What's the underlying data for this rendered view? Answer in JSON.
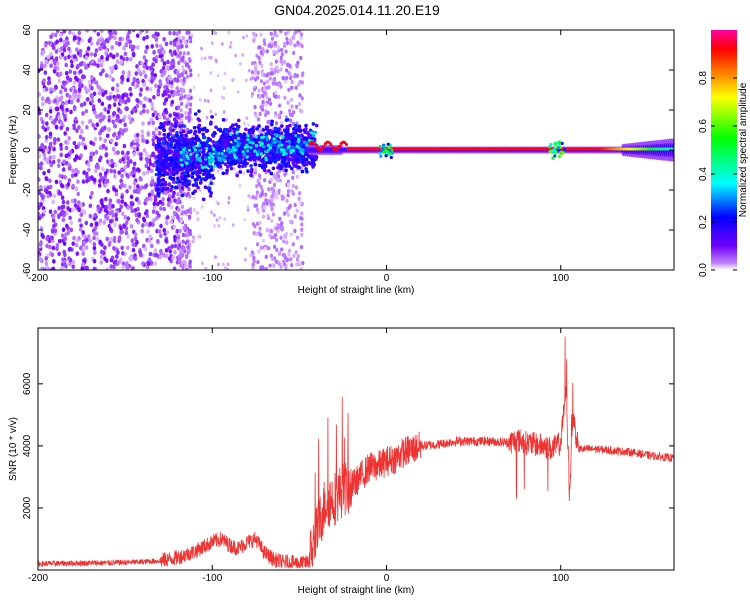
{
  "title": "GN04.2025.014.11.20.E19",
  "chart_data": [
    {
      "type": "heatmap",
      "xlabel": "Height of straight line (km)",
      "ylabel": "Frequency (Hz)",
      "xlim": [
        -200,
        165
      ],
      "ylim": [
        -60,
        60
      ],
      "xticks": [
        -200,
        -100,
        0,
        100
      ],
      "yticks": [
        -60,
        -40,
        -20,
        0,
        20,
        40,
        60
      ],
      "colorbar": {
        "label": "Normalized spectral amplitude",
        "range": [
          0,
          1
        ],
        "ticks": [
          0.0,
          0.2,
          0.4,
          0.6,
          0.8
        ],
        "colors": [
          "#ffffff",
          "#c080ff",
          "#6000ff",
          "#0000ff",
          "#00ffff",
          "#00ff00",
          "#ffff00",
          "#ff8000",
          "#ff0000",
          "#ff00a0"
        ]
      },
      "features": [
        {
          "name": "noise-cloud",
          "x_range": [
            -200,
            -118
          ],
          "freq_range": [
            -60,
            60
          ],
          "amplitude": 0.05
        },
        {
          "name": "sparse-band",
          "x_range": [
            -77,
            -48
          ],
          "freq_range": [
            -60,
            60
          ],
          "amplitude": 0.03
        },
        {
          "name": "signal-band",
          "x_range": [
            -130,
            -40
          ],
          "freq_range": [
            -12,
            14
          ],
          "amplitude": 0.3
        },
        {
          "name": "carrier-line",
          "x_range": [
            -42,
            165
          ],
          "freq": 0,
          "amplitude": 0.95
        }
      ]
    },
    {
      "type": "line",
      "xlabel": "Height of straight line (km)",
      "ylabel": "SNR (10 * v/v)",
      "xlim": [
        -200,
        165
      ],
      "ylim": [
        0,
        7800
      ],
      "xticks": [
        -200,
        -100,
        0,
        100
      ],
      "yticks": [
        2000,
        4000,
        6000
      ],
      "color": "#ee3333",
      "x": [
        -200,
        -180,
        -160,
        -140,
        -130,
        -120,
        -110,
        -100,
        -95,
        -90,
        -85,
        -80,
        -75,
        -70,
        -65,
        -60,
        -55,
        -50,
        -45,
        -40,
        -35,
        -30,
        -25,
        -20,
        -15,
        -10,
        -5,
        0,
        5,
        10,
        15,
        20,
        30,
        40,
        50,
        60,
        70,
        75,
        80,
        90,
        95,
        100,
        103,
        105,
        107,
        110,
        120,
        130,
        140,
        150,
        165
      ],
      "y": [
        200,
        220,
        230,
        260,
        300,
        400,
        600,
        900,
        1000,
        800,
        700,
        900,
        1000,
        550,
        350,
        250,
        250,
        200,
        250,
        1200,
        2200,
        2300,
        2600,
        2700,
        3000,
        3300,
        3350,
        3500,
        3600,
        3800,
        3900,
        4000,
        4050,
        4150,
        4150,
        4150,
        4100,
        4200,
        4100,
        4000,
        3900,
        4100,
        5800,
        2500,
        5000,
        3900,
        3900,
        3850,
        3800,
        3700,
        3600
      ]
    }
  ]
}
